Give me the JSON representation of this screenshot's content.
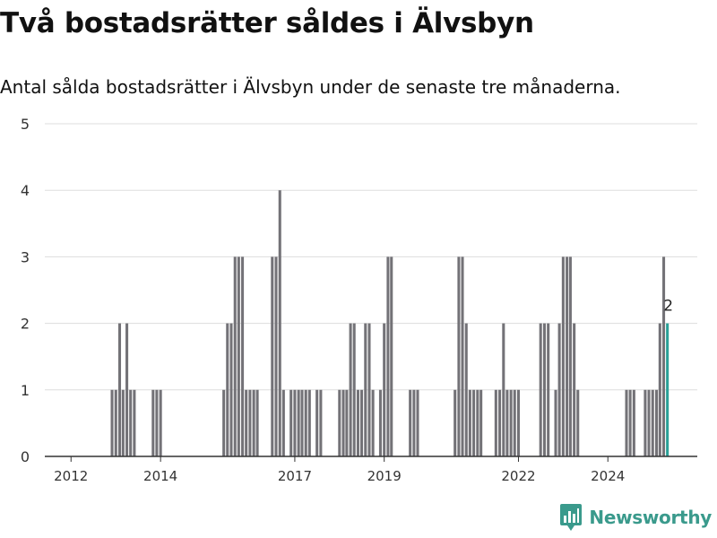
{
  "header": {
    "title": "Två bostadsrätter såldes i Älvsbyn",
    "subtitle": "Antal sålda bostadsrätter i Älvsbyn under de senaste tre månaderna."
  },
  "brand": {
    "name": "Newsworthy",
    "icon": "bar-chart-bubble-icon",
    "color": "#3a9a8c"
  },
  "colors": {
    "bar": "#737277",
    "highlight": "#2aa198",
    "grid": "#dddddd"
  },
  "chart_data": {
    "type": "bar",
    "ylim": [
      0,
      5
    ],
    "yticks": [
      0,
      1,
      2,
      3,
      4,
      5
    ],
    "xlim": [
      "2011-06-01",
      "2025-12-31"
    ],
    "xtick_labels": [
      "2012",
      "2014",
      "2017",
      "2019",
      "2022",
      "2024"
    ],
    "xtick_dates": [
      "2012-01-01",
      "2014-01-01",
      "2017-01-01",
      "2019-01-01",
      "2022-01-01",
      "2024-01-01"
    ],
    "start_date": "2011-08-01",
    "step_months": 1,
    "grid": true,
    "highlight_last": true,
    "highlight_label": "2",
    "values": [
      0,
      0,
      0,
      0,
      0,
      0,
      0,
      0,
      0,
      0,
      0,
      0,
      0,
      0,
      0,
      0,
      1,
      1,
      2,
      1,
      2,
      1,
      1,
      0,
      0,
      0,
      0,
      1,
      1,
      1,
      0,
      0,
      0,
      0,
      0,
      0,
      0,
      0,
      0,
      0,
      0,
      0,
      0,
      0,
      0,
      0,
      1,
      2,
      2,
      3,
      3,
      3,
      1,
      1,
      1,
      1,
      0,
      0,
      0,
      3,
      3,
      4,
      1,
      0,
      1,
      1,
      1,
      1,
      1,
      1,
      0,
      1,
      1,
      0,
      0,
      0,
      0,
      1,
      1,
      1,
      2,
      2,
      1,
      1,
      2,
      2,
      1,
      0,
      1,
      2,
      3,
      3,
      0,
      0,
      0,
      0,
      1,
      1,
      1,
      0,
      0,
      0,
      0,
      0,
      0,
      0,
      0,
      0,
      1,
      3,
      3,
      2,
      1,
      1,
      1,
      1,
      0,
      0,
      0,
      1,
      1,
      2,
      1,
      1,
      1,
      1,
      0,
      0,
      0,
      0,
      0,
      2,
      2,
      2,
      0,
      1,
      2,
      3,
      3,
      3,
      2,
      1,
      0,
      0,
      0,
      0,
      0,
      0,
      0,
      0,
      0,
      0,
      0,
      0,
      1,
      1,
      1,
      0,
      0,
      1,
      1,
      1,
      1,
      2,
      3,
      2
    ]
  }
}
